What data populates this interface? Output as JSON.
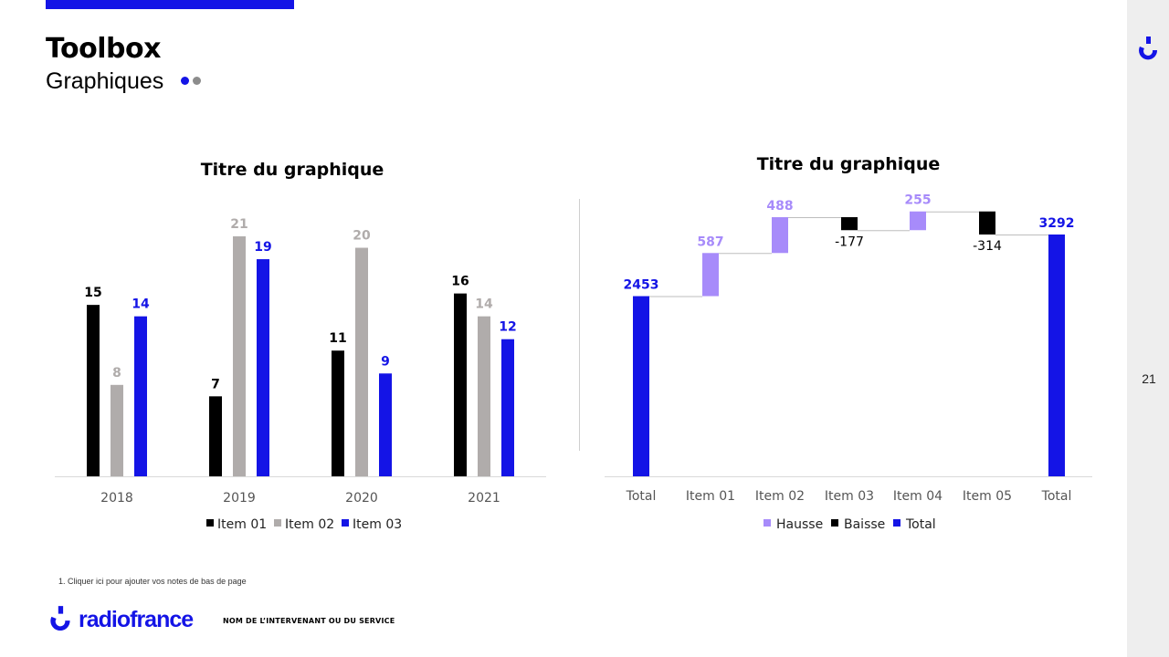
{
  "header": {
    "title": "Toolbox",
    "subtitle": "Graphiques"
  },
  "page_number": "21",
  "footnote": "1.   Cliquer ici pour ajouter vos notes de bas de page",
  "footer": {
    "logo_text": "radiofrance",
    "service": "NOM DE L’INTERVENANT OU DU SERVICE"
  },
  "colors": {
    "brand_blue": "#1414e6",
    "item01": "#000000",
    "item02": "#b0acab",
    "item03": "#1414e6",
    "hausse": "#a78bfa",
    "baisse": "#000000",
    "total": "#1414e6"
  },
  "chart_data": [
    {
      "type": "bar",
      "title": "Titre du graphique",
      "categories": [
        "2018",
        "2019",
        "2020",
        "2021"
      ],
      "series": [
        {
          "name": "Item 01",
          "values": [
            15,
            7,
            11,
            16
          ]
        },
        {
          "name": "Item 02",
          "values": [
            8,
            21,
            20,
            14
          ]
        },
        {
          "name": "Item 03",
          "values": [
            14,
            19,
            9,
            12
          ]
        }
      ],
      "ylim": [
        0,
        21
      ],
      "grid": false,
      "legend": "bottom"
    },
    {
      "type": "waterfall",
      "title": "Titre du graphique",
      "categories": [
        "Total",
        "Item 01",
        "Item 02",
        "Item 03",
        "Item 04",
        "Item 05",
        "Total"
      ],
      "values": [
        2453,
        587,
        488,
        -177,
        255,
        -314,
        3292
      ],
      "labels": [
        "2453",
        "587",
        "488",
        "-177",
        "255",
        "-314",
        "3292"
      ],
      "kinds": [
        "total",
        "hausse",
        "hausse",
        "baisse",
        "hausse",
        "baisse",
        "total"
      ],
      "legend_entries": {
        "hausse": "Hausse",
        "baisse": "Baisse",
        "total": "Total"
      },
      "grid": false,
      "legend": "bottom"
    }
  ]
}
